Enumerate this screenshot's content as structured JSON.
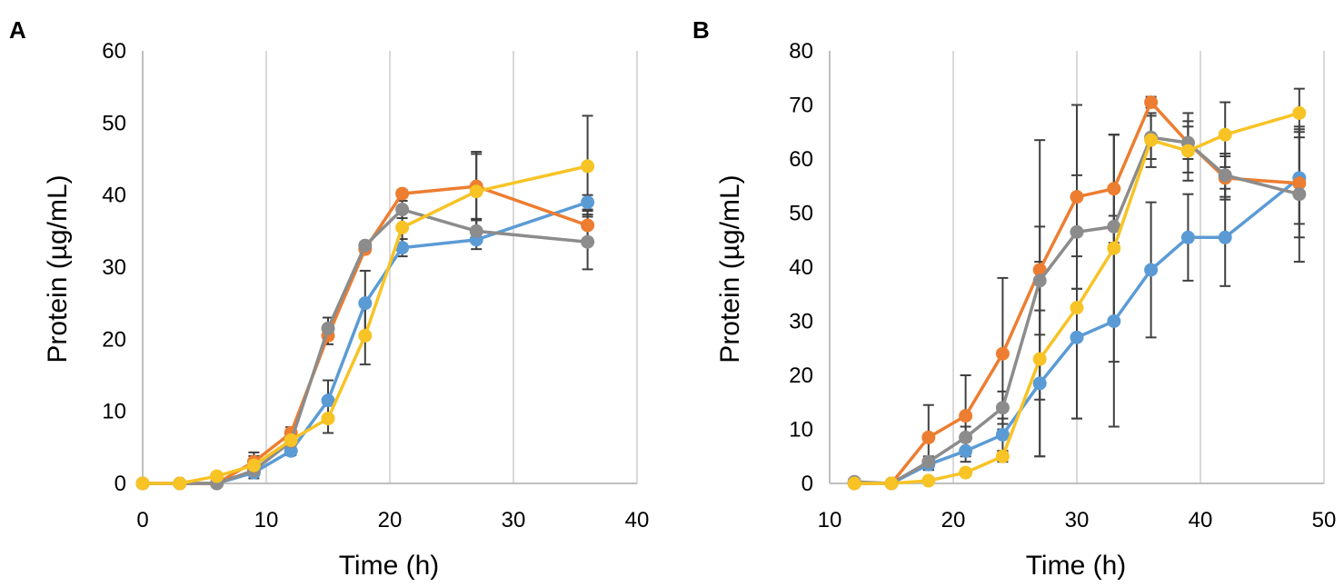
{
  "chart_data": [
    {
      "type": "line",
      "panel_label": "A",
      "xlabel": "Time (h)",
      "ylabel": "Protein (µg/mL)",
      "xlim": [
        0,
        40
      ],
      "ylim": [
        0,
        60
      ],
      "xticks": [
        0,
        10,
        20,
        30,
        40
      ],
      "yticks": [
        0,
        10,
        20,
        30,
        40,
        50,
        60
      ],
      "vertical_grid": true,
      "series": [
        {
          "name": "blue",
          "color": "#5b9bd5",
          "x": [
            0,
            3,
            6,
            9,
            12,
            15,
            18,
            21,
            27,
            36
          ],
          "y": [
            0,
            0,
            0,
            1.5,
            4.5,
            11.5,
            25,
            32.7,
            33.8,
            39
          ],
          "err": [
            0,
            0,
            0,
            0.3,
            0.6,
            2.8,
            4.5,
            1.2,
            1.3,
            1.0
          ]
        },
        {
          "name": "orange",
          "color": "#ed7d31",
          "x": [
            0,
            3,
            6,
            9,
            12,
            15,
            18,
            21,
            27,
            36
          ],
          "y": [
            0,
            0,
            0,
            3,
            7,
            20.5,
            32.5,
            40.2,
            41.2,
            35.8
          ],
          "err": [
            0,
            0,
            0,
            0.8,
            0.8,
            1.2,
            0.5,
            0.5,
            4.5,
            2.0
          ]
        },
        {
          "name": "gray",
          "color": "#8c8c8c",
          "x": [
            0,
            3,
            6,
            9,
            12,
            15,
            18,
            21,
            27,
            36
          ],
          "y": [
            0,
            0,
            0,
            1.8,
            5.8,
            21.5,
            33,
            38,
            35,
            33.5
          ],
          "err": [
            0,
            0,
            0,
            0.5,
            1.0,
            1.5,
            0.5,
            1.2,
            1.5,
            3.8
          ]
        },
        {
          "name": "yellow",
          "color": "#f7c325",
          "x": [
            0,
            3,
            6,
            9,
            12,
            15,
            18,
            21,
            27,
            36
          ],
          "y": [
            0,
            0,
            1,
            2.5,
            6,
            9,
            20.5,
            35.5,
            40.5,
            44
          ],
          "err": [
            0,
            0,
            0,
            1.8,
            0.5,
            2.0,
            4.0,
            2.5,
            5.5,
            7.0
          ]
        }
      ]
    },
    {
      "type": "line",
      "panel_label": "B",
      "xlabel": "Time (h)",
      "ylabel": "Protein (µg/mL)",
      "xlim": [
        10,
        50
      ],
      "ylim": [
        0,
        80
      ],
      "xticks": [
        10,
        20,
        30,
        40,
        50
      ],
      "yticks": [
        0,
        10,
        20,
        30,
        40,
        50,
        60,
        70,
        80
      ],
      "vertical_grid": true,
      "series": [
        {
          "name": "blue",
          "color": "#5b9bd5",
          "x": [
            12,
            15,
            18,
            21,
            24,
            27,
            30,
            33,
            36,
            39,
            42,
            48
          ],
          "y": [
            0,
            0,
            3.5,
            6,
            9,
            18.5,
            27,
            30,
            39.5,
            45.5,
            45.5,
            56.5
          ],
          "err": [
            0,
            0,
            1.0,
            2.0,
            3.0,
            13.5,
            15.0,
            19.5,
            12.5,
            8.0,
            9.0,
            8.5
          ]
        },
        {
          "name": "orange",
          "color": "#ed7d31",
          "x": [
            12,
            15,
            18,
            21,
            24,
            27,
            30,
            33,
            36,
            39,
            42,
            48
          ],
          "y": [
            0,
            0,
            8.5,
            12.5,
            24,
            39.5,
            53,
            54.5,
            70.5,
            63,
            56.5,
            55.5
          ],
          "err": [
            0,
            0,
            6.0,
            7.5,
            14.0,
            24.0,
            17.0,
            10.0,
            1.0,
            3.0,
            4.0,
            10.0
          ]
        },
        {
          "name": "gray",
          "color": "#8c8c8c",
          "x": [
            12,
            15,
            18,
            21,
            24,
            27,
            30,
            33,
            36,
            39,
            42,
            48
          ],
          "y": [
            0.3,
            0,
            4,
            8.5,
            14,
            37.5,
            46.5,
            47.5,
            64,
            63,
            57,
            53.5
          ],
          "err": [
            0,
            0,
            1.0,
            2.0,
            3.0,
            10.0,
            10.5,
            17.0,
            4.0,
            5.5,
            4.0,
            12.5
          ]
        },
        {
          "name": "yellow",
          "color": "#f7c325",
          "x": [
            12,
            15,
            18,
            21,
            24,
            27,
            30,
            33,
            36,
            39,
            42,
            48
          ],
          "y": [
            0,
            0,
            0.5,
            2,
            5,
            23,
            32.5,
            43.5,
            63.5,
            61.5,
            64.5,
            68.5
          ],
          "err": [
            0,
            0,
            0.2,
            0.5,
            1.0,
            18.0,
            20.5,
            21.0,
            5.0,
            5.5,
            6.0,
            4.5
          ]
        }
      ]
    }
  ]
}
